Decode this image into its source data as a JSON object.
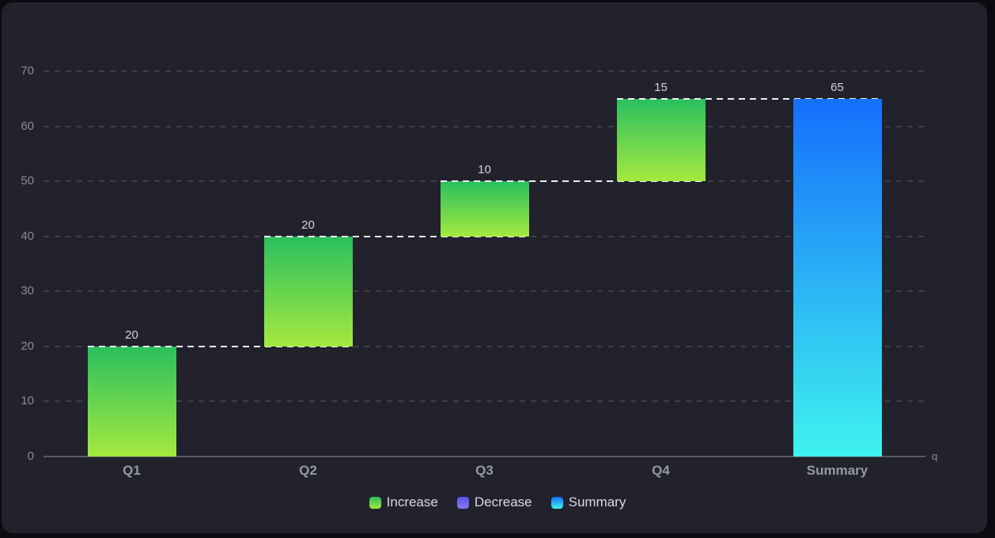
{
  "page": {
    "background": "#0b0b10",
    "panel_background": "#22222c"
  },
  "chart_data": {
    "type": "bar",
    "subtype": "waterfall",
    "title": "",
    "xlabel": "q",
    "ylabel": "",
    "categories": [
      "Q1",
      "Q2",
      "Q3",
      "Q4",
      "Summary"
    ],
    "segments": [
      {
        "category": "Q1",
        "start": 0,
        "end": 20,
        "value": 20,
        "label": "20",
        "series": "Increase"
      },
      {
        "category": "Q2",
        "start": 20,
        "end": 40,
        "value": 20,
        "label": "20",
        "series": "Increase"
      },
      {
        "category": "Q3",
        "start": 40,
        "end": 50,
        "value": 10,
        "label": "10",
        "series": "Increase"
      },
      {
        "category": "Q4",
        "start": 50,
        "end": 65,
        "value": 15,
        "label": "15",
        "series": "Increase"
      },
      {
        "category": "Summary",
        "start": 0,
        "end": 65,
        "value": 65,
        "label": "65",
        "series": "Summary"
      }
    ],
    "series": [
      {
        "name": "Increase",
        "values": [
          20,
          20,
          10,
          15,
          null
        ]
      },
      {
        "name": "Decrease",
        "values": [
          null,
          null,
          null,
          null,
          null
        ]
      },
      {
        "name": "Summary",
        "values": [
          null,
          null,
          null,
          null,
          65
        ]
      }
    ],
    "yticks": [
      0,
      10,
      20,
      30,
      40,
      50,
      60,
      70
    ],
    "ylim": [
      0,
      70
    ],
    "grid": true,
    "grid_style": "dashed",
    "connector_style": "dashed",
    "legend_position": "bottom",
    "legend": [
      {
        "label": "Increase",
        "colors": [
          "#2abf5e",
          "#a4e93f"
        ]
      },
      {
        "label": "Decrease",
        "colors": [
          "#5b51ee",
          "#8379f7"
        ]
      },
      {
        "label": "Summary",
        "colors": [
          "#156ffc",
          "#3ff3ee"
        ]
      }
    ],
    "colors": {
      "increase_top": "#2abf5e",
      "increase_bottom": "#a4e93f",
      "decrease_top": "#5b51ee",
      "decrease_bottom": "#8379f7",
      "summary_top": "#156ffc",
      "summary_bottom": "#3ff3ee",
      "gridline": "#3e3e49",
      "axis_line": "#5a5a64",
      "connector": "#eceef2",
      "tick_label": "#8b8b95",
      "category_label": "#9599a7",
      "value_label": "#d2d3da",
      "legend_text": "#d9dae0",
      "axis_name": "#8b8b95"
    }
  }
}
